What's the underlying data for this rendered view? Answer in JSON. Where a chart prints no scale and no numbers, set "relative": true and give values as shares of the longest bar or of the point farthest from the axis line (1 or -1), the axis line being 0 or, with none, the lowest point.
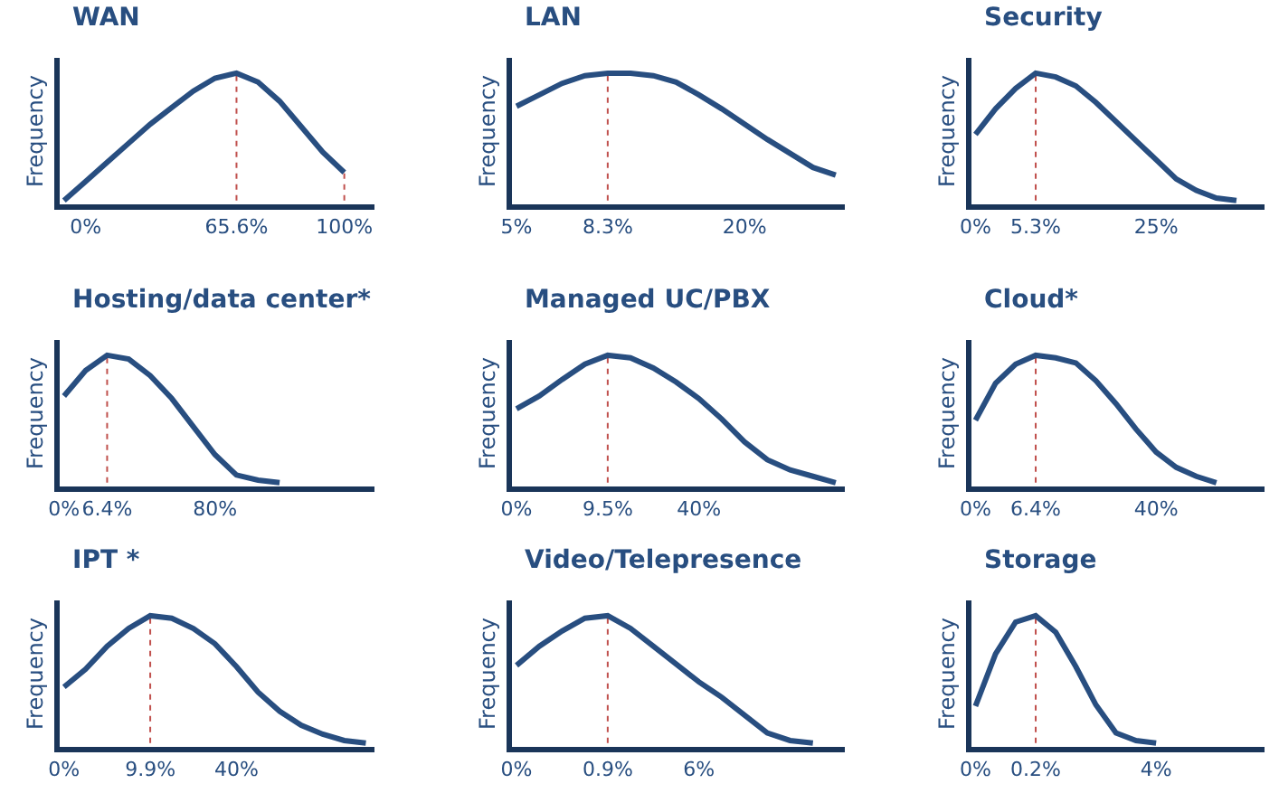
{
  "chart_data": [
    {
      "type": "line",
      "title": "WAN",
      "ylabel": "Frequency",
      "relative": true,
      "tick_labels": "x",
      "categories": [
        null,
        "0%",
        null,
        null,
        null,
        null,
        null,
        null,
        "65.6%",
        null,
        null,
        null,
        null,
        "100%"
      ],
      "series": [
        {
          "color": "#284e80",
          "values": [
            0,
            0.15,
            0.3,
            0.45,
            0.6,
            0.73,
            0.86,
            0.96,
            1,
            0.93,
            0.78,
            0.58,
            0.38,
            0.22
          ]
        }
      ],
      "ref_lines": [
        {
          "axis": "x",
          "value": "65.6%",
          "color": "#c0504d",
          "line_style": "dotted"
        },
        {
          "axis": "x",
          "value": "100%",
          "color": "#c0504d",
          "line_style": "dotted"
        }
      ]
    },
    {
      "type": "line",
      "title": "LAN",
      "ylabel": "Frequency",
      "relative": true,
      "tick_labels": "x",
      "categories": [
        "5%",
        null,
        null,
        null,
        "8.3%",
        null,
        null,
        null,
        null,
        null,
        "20%",
        null,
        null,
        null,
        null
      ],
      "series": [
        {
          "color": "#284e80",
          "values": [
            0.74,
            0.83,
            0.92,
            0.98,
            1,
            1,
            0.98,
            0.93,
            0.83,
            0.72,
            0.6,
            0.48,
            0.37,
            0.26,
            0.2
          ]
        }
      ],
      "ref_lines": [
        {
          "axis": "x",
          "value": "8.3%",
          "color": "#c0504d",
          "line_style": "dotted"
        }
      ]
    },
    {
      "type": "line",
      "title": "Security",
      "ylabel": "Frequency",
      "relative": true,
      "tick_labels": "x",
      "categories": [
        "0%",
        null,
        null,
        "5.3%",
        null,
        null,
        null,
        null,
        null,
        "25%",
        null,
        null,
        null,
        null
      ],
      "series": [
        {
          "color": "#284e80",
          "values": [
            0.52,
            0.72,
            0.88,
            1,
            0.97,
            0.9,
            0.77,
            0.62,
            0.47,
            0.32,
            0.17,
            0.08,
            0.02,
            0
          ]
        }
      ],
      "ref_lines": [
        {
          "axis": "x",
          "value": "5.3%",
          "color": "#c0504d",
          "line_style": "dotted"
        }
      ]
    },
    {
      "type": "line",
      "title": "Hosting/data center*",
      "ylabel": "Frequency",
      "relative": true,
      "tick_labels": "x",
      "categories": [
        "0%",
        null,
        "6.4%",
        null,
        null,
        null,
        null,
        "80%",
        null,
        null,
        null
      ],
      "series": [
        {
          "color": "#284e80",
          "values": [
            0.68,
            0.88,
            1,
            0.97,
            0.84,
            0.66,
            0.44,
            0.22,
            0.06,
            0.02,
            0
          ]
        }
      ],
      "ref_lines": [
        {
          "axis": "x",
          "value": "6.4%",
          "color": "#c0504d",
          "line_style": "dotted"
        }
      ]
    },
    {
      "type": "line",
      "title": "Managed UC/PBX",
      "ylabel": "Frequency",
      "relative": true,
      "tick_labels": "x",
      "categories": [
        "0%",
        null,
        null,
        null,
        "9.5%",
        null,
        null,
        null,
        "40%",
        null,
        null,
        null,
        null,
        null,
        null
      ],
      "series": [
        {
          "color": "#284e80",
          "values": [
            0.58,
            0.68,
            0.81,
            0.93,
            1,
            0.98,
            0.9,
            0.79,
            0.66,
            0.5,
            0.32,
            0.18,
            0.1,
            0.05,
            0
          ]
        }
      ],
      "ref_lines": [
        {
          "axis": "x",
          "value": "9.5%",
          "color": "#c0504d",
          "line_style": "dotted"
        }
      ]
    },
    {
      "type": "line",
      "title": "Cloud*",
      "ylabel": "Frequency",
      "relative": true,
      "tick_labels": "x",
      "categories": [
        "0%",
        null,
        null,
        "6.4%",
        null,
        null,
        null,
        null,
        null,
        "40%",
        null,
        null,
        null
      ],
      "series": [
        {
          "color": "#284e80",
          "values": [
            0.49,
            0.78,
            0.93,
            1,
            0.98,
            0.94,
            0.8,
            0.62,
            0.42,
            0.24,
            0.12,
            0.05,
            0
          ]
        }
      ],
      "ref_lines": [
        {
          "axis": "x",
          "value": "6.4%",
          "color": "#c0504d",
          "line_style": "dotted"
        }
      ]
    },
    {
      "type": "line",
      "title": "IPT *",
      "ylabel": "Frequency",
      "relative": true,
      "tick_labels": "x",
      "categories": [
        "0%",
        null,
        null,
        null,
        "9.9%",
        null,
        null,
        null,
        "40%",
        null,
        null,
        null,
        null,
        null,
        null
      ],
      "series": [
        {
          "color": "#284e80",
          "values": [
            0.44,
            0.58,
            0.76,
            0.9,
            1,
            0.98,
            0.9,
            0.78,
            0.6,
            0.4,
            0.25,
            0.14,
            0.07,
            0.02,
            0
          ]
        }
      ],
      "ref_lines": [
        {
          "axis": "x",
          "value": "9.9%",
          "color": "#c0504d",
          "line_style": "dotted"
        }
      ]
    },
    {
      "type": "line",
      "title": "Video/Telepresence",
      "ylabel": "Frequency",
      "relative": true,
      "tick_labels": "x",
      "categories": [
        "0%",
        null,
        null,
        null,
        "0.9%",
        null,
        null,
        null,
        "6%",
        null,
        null,
        null,
        null,
        null
      ],
      "series": [
        {
          "color": "#284e80",
          "values": [
            0.61,
            0.76,
            0.88,
            0.98,
            1,
            0.9,
            0.76,
            0.62,
            0.48,
            0.36,
            0.22,
            0.08,
            0.02,
            0
          ]
        }
      ],
      "ref_lines": [
        {
          "axis": "x",
          "value": "0.9%",
          "color": "#c0504d",
          "line_style": "dotted"
        }
      ]
    },
    {
      "type": "line",
      "title": "Storage",
      "ylabel": "Frequency",
      "relative": true,
      "tick_labels": "x",
      "categories": [
        "0%",
        null,
        null,
        "0.2%",
        null,
        null,
        null,
        null,
        null,
        "4%"
      ],
      "series": [
        {
          "color": "#284e80",
          "values": [
            0.29,
            0.7,
            0.95,
            1,
            0.87,
            0.6,
            0.3,
            0.08,
            0.02,
            0
          ]
        }
      ],
      "ref_lines": [
        {
          "axis": "x",
          "value": "0.2%",
          "color": "#c0504d",
          "line_style": "dotted"
        }
      ]
    }
  ]
}
